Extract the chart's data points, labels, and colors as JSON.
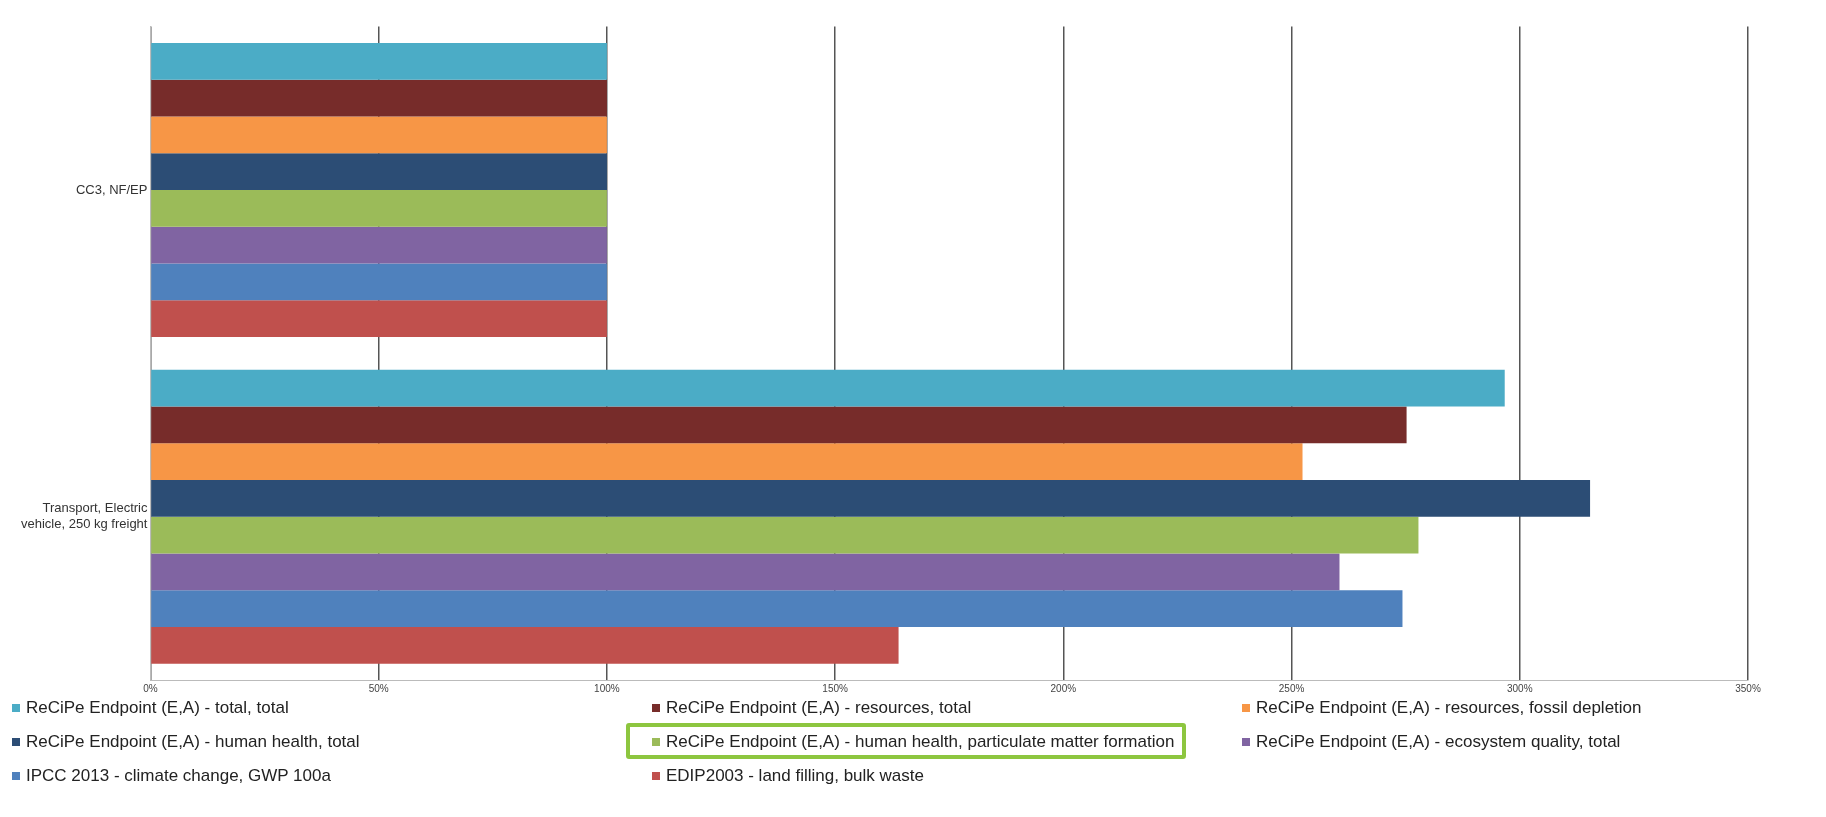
{
  "chart_data": {
    "type": "bar",
    "orientation": "horizontal",
    "categories": [
      "CC3, NF/EP",
      "Transport, Electric vehicle, 250 kg freight"
    ],
    "series": [
      {
        "name": "ReCiPe Endpoint (E,A) - total, total",
        "color": "#4bacc6",
        "values": [
          100,
          296.7
        ]
      },
      {
        "name": "ReCiPe Endpoint (E,A) - resources, total",
        "color": "#772c2a",
        "values": [
          100,
          275.2
        ]
      },
      {
        "name": "ReCiPe Endpoint (E,A) - resources, fossil depletion",
        "color": "#f79646",
        "values": [
          100,
          252.4
        ]
      },
      {
        "name": "ReCiPe Endpoint (E,A) - human health, total",
        "color": "#2c4d75",
        "values": [
          100,
          315.4
        ]
      },
      {
        "name": "ReCiPe Endpoint (E,A) - human health, particulate matter formation",
        "color": "#9bbb59",
        "values": [
          100,
          277.8
        ]
      },
      {
        "name": "ReCiPe Endpoint (E,A) - ecosystem quality, total",
        "color": "#8064a2",
        "values": [
          100,
          260.5
        ]
      },
      {
        "name": "IPCC 2013 - climate change, GWP 100a",
        "color": "#4f81bd",
        "values": [
          100,
          274.3
        ]
      },
      {
        "name": "EDIP2003 - land filling, bulk waste",
        "color": "#c0504d",
        "values": [
          100,
          163.9
        ]
      }
    ],
    "xlim": [
      0,
      350
    ],
    "xticks": [
      {
        "value": 0,
        "label": "0%"
      },
      {
        "value": 50,
        "label": "50%"
      },
      {
        "value": 100,
        "label": "100%"
      },
      {
        "value": 150,
        "label": "150%"
      },
      {
        "value": 200,
        "label": "200%"
      },
      {
        "value": 250,
        "label": "250%"
      },
      {
        "value": 300,
        "label": "300%"
      },
      {
        "value": 350,
        "label": "350%"
      }
    ],
    "grid": "x",
    "legend": "bottom"
  }
}
